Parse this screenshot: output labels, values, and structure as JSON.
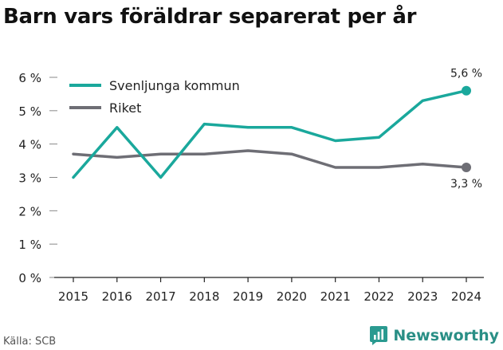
{
  "title": "Barn vars föräldrar separerat per år",
  "source": "Källa: SCB",
  "brand": {
    "name": "Newsworthy",
    "color": "#2a9a90",
    "icon": "newsworthy-logo-icon"
  },
  "chart_data": {
    "type": "line",
    "title": "Barn vars föräldrar separerat per år",
    "x": [
      2015,
      2016,
      2017,
      2018,
      2019,
      2020,
      2021,
      2022,
      2023,
      2024
    ],
    "x_tick_labels": [
      "2015",
      "2016",
      "2017",
      "2018",
      "2019",
      "2020",
      "2021",
      "2022",
      "2023",
      "2024"
    ],
    "ylim": [
      0,
      6
    ],
    "y_ticks": [
      0,
      1,
      2,
      3,
      4,
      5,
      6
    ],
    "y_tick_labels": [
      "0 %",
      "1 %",
      "2 %",
      "3 %",
      "4 %",
      "5 %",
      "6 %"
    ],
    "grid": false,
    "legend_position": "top-left",
    "series": [
      {
        "name": "Svenljunga kommun",
        "color": "#1aa89c",
        "values": [
          3.0,
          4.5,
          3.0,
          4.6,
          4.5,
          4.5,
          4.1,
          4.2,
          5.3,
          5.6
        ],
        "end_label": "5,6 %",
        "end_label_position": "above"
      },
      {
        "name": "Riket",
        "color": "#6e6e75",
        "values": [
          3.7,
          3.6,
          3.7,
          3.7,
          3.8,
          3.7,
          3.3,
          3.3,
          3.4,
          3.3
        ],
        "end_label": "3,3 %",
        "end_label_position": "below"
      }
    ]
  }
}
